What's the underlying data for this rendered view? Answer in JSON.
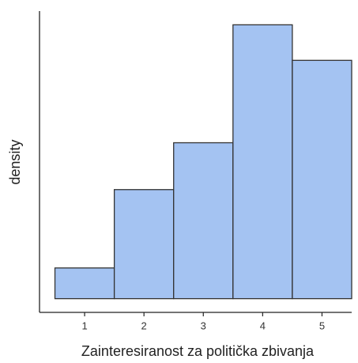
{
  "chart_data": {
    "type": "histogram",
    "xlabel": "Zainteresiranost za politička zbivanja",
    "ylabel": "density",
    "bins": [
      0.5,
      1.5,
      2.5,
      3.5,
      4.5,
      5.5
    ],
    "values": [
      0.038,
      0.135,
      0.193,
      0.339,
      0.295
    ],
    "color": "#a4c3f2",
    "edgecolor": "#333333",
    "xlim": [
      0.24,
      5.5
    ],
    "ylim": [
      -0.017,
      0.356
    ],
    "xticks": [
      1,
      2,
      3,
      4,
      5
    ]
  }
}
